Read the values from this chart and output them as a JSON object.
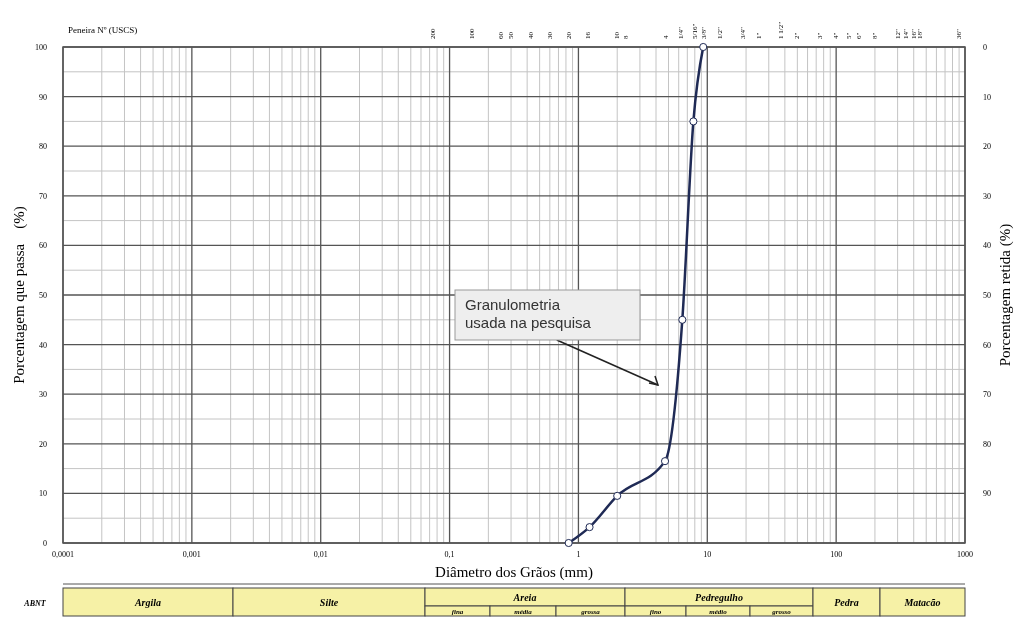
{
  "chart_data": [
    {
      "type": "line",
      "xlabel": "Diâmetro dos Grãos (mm)",
      "ylabel": "Porcentagem que passa    (%)",
      "y2label": "Porcentagem retida (%)",
      "x2label": "Peneira Nº (USCS)",
      "log": "x",
      "grid": true,
      "marker": "circle",
      "line_style": "solid",
      "xlim": [
        0.0001,
        1000
      ],
      "xticks": [
        {
          "value": 0.0001,
          "label": "0,0001"
        },
        {
          "value": 0.001,
          "label": "0,001"
        },
        {
          "value": 0.01,
          "label": "0,01"
        },
        {
          "value": 0.1,
          "label": "0,1"
        },
        1,
        10,
        100,
        1000
      ],
      "ylim": [
        0,
        100
      ],
      "yticks": [
        0,
        10,
        20,
        30,
        40,
        50,
        60,
        70,
        80,
        90,
        100
      ],
      "y2lim": [
        100,
        0
      ],
      "y2ticks": [
        0,
        10,
        20,
        30,
        40,
        50,
        60,
        70,
        80,
        90
      ],
      "series": [
        {
          "color": "#1f2a55",
          "x": [
            0.84,
            1.22,
            2.0,
            4.7,
            6.4,
            7.8,
            9.3
          ],
          "values": [
            0,
            3.2,
            9.5,
            16.5,
            45,
            85,
            100
          ]
        }
      ],
      "annotations": [
        "Granulometria usada na pesquisa",
        "200",
        "100",
        "60",
        "50",
        "40",
        "30",
        "20",
        "16",
        "10",
        "8",
        "4",
        "1/4\"",
        "5/16\"",
        "3/8\"",
        "1/2\"",
        "3/4\"",
        "1\"",
        "1 1/2\"",
        "2\"",
        "3\"",
        "4\"",
        "5\"",
        "6\"",
        "8\"",
        "12\"",
        "14\"",
        "16\"",
        "18\"",
        "36\""
      ]
    },
    {
      "type": "other",
      "annotations": [
        "ABNT",
        "Argila",
        "Silte",
        "Areia",
        "fina",
        "média",
        "grossa",
        "Pedregulho",
        "fino",
        "médio",
        "grosso",
        "Pedra",
        "Matacão"
      ]
    }
  ]
}
